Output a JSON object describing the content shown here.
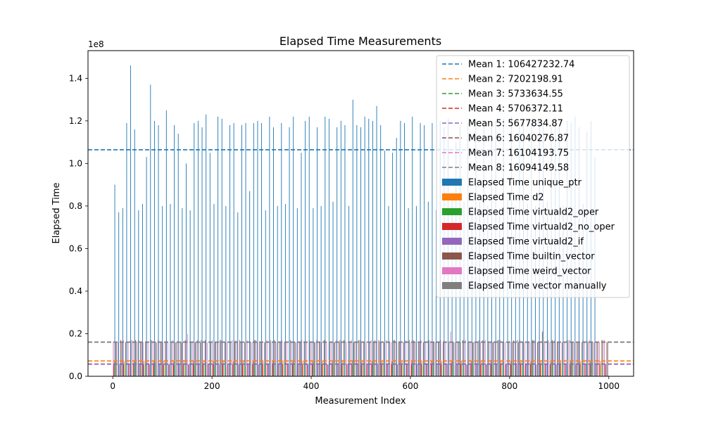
{
  "chart_data": {
    "type": "bar",
    "title": "Elapsed Time Measurements",
    "xlabel": "Measurement Index",
    "ylabel": "Elapsed Time",
    "y_scale_label": "1e8",
    "xlim": [
      -50,
      1050
    ],
    "ylim": [
      0,
      1.53
    ],
    "x_ticks": [
      0,
      200,
      400,
      600,
      800,
      1000
    ],
    "x_tick_labels": [
      "0",
      "200",
      "400",
      "600",
      "800",
      "1000"
    ],
    "y_ticks": [
      0,
      0.2,
      0.4,
      0.6,
      0.8,
      1.0,
      1.2,
      1.4
    ],
    "y_tick_labels": [
      "0.0",
      "0.2",
      "0.4",
      "0.6",
      "0.8",
      "1.0",
      "1.2",
      "1.4"
    ],
    "grid": false,
    "legend_position": "top-right",
    "mean_lines": [
      {
        "label": "Mean 1: 106427232.74",
        "value": 1.0642723274,
        "color": "#1f77b4"
      },
      {
        "label": "Mean 2: 7202198.91",
        "value": 0.0720219891,
        "color": "#ff7f0e"
      },
      {
        "label": "Mean 3: 5733634.55",
        "value": 0.0573363455,
        "color": "#2ca02c"
      },
      {
        "label": "Mean 4: 5706372.11",
        "value": 0.0570637211,
        "color": "#d62728"
      },
      {
        "label": "Mean 5: 5677834.87",
        "value": 0.0567783487,
        "color": "#9467bd"
      },
      {
        "label": "Mean 6: 16040276.87",
        "value": 0.1604027687,
        "color": "#8c564b"
      },
      {
        "label": "Mean 7: 16104193.75",
        "value": 0.1610419375,
        "color": "#e377c2"
      },
      {
        "label": "Mean 8: 16094149.58",
        "value": 0.1609414958,
        "color": "#7f7f7f"
      }
    ],
    "series": [
      {
        "name": "Elapsed Time unique_ptr",
        "color": "#1f77b4",
        "step": 8,
        "offset": 4,
        "values": [
          0.9,
          0.77,
          0.79,
          1.19,
          1.46,
          1.16,
          0.78,
          0.81,
          1.03,
          1.37,
          1.2,
          1.18,
          0.8,
          1.25,
          0.81,
          1.18,
          1.14,
          0.79,
          1.0,
          0.78,
          1.19,
          1.2,
          1.17,
          1.23,
          1.05,
          0.81,
          1.22,
          1.21,
          0.8,
          1.18,
          1.19,
          0.77,
          1.18,
          1.19,
          0.87,
          1.19,
          1.2,
          1.19,
          0.78,
          1.22,
          1.17,
          0.8,
          1.19,
          0.81,
          1.17,
          1.22,
          0.79,
          1.05,
          1.2,
          1.22,
          0.79,
          1.17,
          0.8,
          1.22,
          1.21,
          0.82,
          1.17,
          1.2,
          1.18,
          0.8,
          1.3,
          1.18,
          1.17,
          1.22,
          1.21,
          1.2,
          1.27,
          1.18,
          1.06,
          0.8,
          1.05,
          1.12,
          1.2,
          1.19,
          0.79,
          1.22,
          0.8,
          1.19,
          1.18,
          0.82,
          1.19,
          0.78,
          1.2,
          1.17,
          1.21,
          0.84,
          1.1,
          1.18,
          0.82,
          1.19,
          0.8,
          1.21,
          0.82,
          1.19,
          0.8,
          1.18,
          1.2,
          0.79,
          1.21,
          0.83,
          1.22,
          0.8,
          1.18,
          1.2,
          0.81,
          1.19,
          0.8,
          1.2,
          1.19,
          0.82,
          1.18,
          1.21,
          1.18,
          0.8,
          1.2,
          1.19,
          1.22,
          1.17,
          0.81,
          1.15,
          1.2,
          1.03
        ]
      },
      {
        "name": "Elapsed Time d2",
        "color": "#ff7f0e",
        "step": 20,
        "offset": 3,
        "values": [
          0.072,
          0.071,
          0.075,
          0.073,
          0.07,
          0.074,
          0.072,
          0.076,
          0.071,
          0.073,
          0.072,
          0.075,
          0.07,
          0.073,
          0.074,
          0.072,
          0.071,
          0.075,
          0.073,
          0.072,
          0.074,
          0.071,
          0.073,
          0.072,
          0.075,
          0.07,
          0.073,
          0.074,
          0.072,
          0.071,
          0.075,
          0.073,
          0.072,
          0.074,
          0.071,
          0.073,
          0.072,
          0.075,
          0.07,
          0.073,
          0.074,
          0.072,
          0.071,
          0.075,
          0.073,
          0.072,
          0.074,
          0.071,
          0.073,
          0.072
        ]
      },
      {
        "name": "Elapsed Time virtuald2_oper",
        "color": "#2ca02c",
        "step": 20,
        "offset": 6,
        "values": [
          0.057,
          0.058,
          0.056,
          0.06,
          0.057,
          0.055,
          0.059,
          0.057,
          0.058,
          0.056,
          0.057,
          0.059,
          0.056,
          0.058,
          0.057,
          0.06,
          0.055,
          0.057,
          0.058,
          0.056,
          0.059,
          0.057,
          0.058,
          0.056,
          0.057,
          0.059,
          0.056,
          0.058,
          0.057,
          0.06,
          0.055,
          0.057,
          0.058,
          0.056,
          0.059,
          0.057,
          0.058,
          0.056,
          0.057,
          0.059,
          0.056,
          0.058,
          0.057,
          0.06,
          0.055,
          0.057,
          0.058,
          0.056,
          0.059,
          0.057
        ]
      },
      {
        "name": "Elapsed Time virtuald2_no_oper",
        "color": "#d62728",
        "step": 10,
        "offset": 2,
        "values": [
          0.057,
          0.056,
          0.059,
          0.057,
          0.058,
          0.056,
          0.057,
          0.06,
          0.055,
          0.058,
          0.057,
          0.056,
          0.059,
          0.057,
          0.058,
          0.056,
          0.057,
          0.059,
          0.056,
          0.058,
          0.057,
          0.06,
          0.055,
          0.057,
          0.058,
          0.056,
          0.059,
          0.057,
          0.058,
          0.056,
          0.057,
          0.059,
          0.056,
          0.058,
          0.057,
          0.06,
          0.055,
          0.057,
          0.058,
          0.056,
          0.059,
          0.057,
          0.058,
          0.056,
          0.057,
          0.059,
          0.056,
          0.058,
          0.057,
          0.06,
          0.055,
          0.057,
          0.058,
          0.056,
          0.059,
          0.057,
          0.058,
          0.056,
          0.057,
          0.059,
          0.056,
          0.058,
          0.057,
          0.06,
          0.055,
          0.057,
          0.058,
          0.056,
          0.059,
          0.057,
          0.058,
          0.056,
          0.057,
          0.059,
          0.056,
          0.058,
          0.057,
          0.06,
          0.055,
          0.057,
          0.058,
          0.056,
          0.059,
          0.057,
          0.058,
          0.056,
          0.057,
          0.059,
          0.056,
          0.058,
          0.057,
          0.06,
          0.055,
          0.057,
          0.058,
          0.056,
          0.059,
          0.057,
          0.058,
          0.056
        ]
      },
      {
        "name": "Elapsed Time virtuald2_if",
        "color": "#9467bd",
        "step": 20,
        "offset": 14,
        "values": [
          0.056,
          0.057,
          0.058,
          0.056,
          0.055,
          0.059,
          0.057,
          0.056,
          0.058,
          0.057,
          0.055,
          0.056,
          0.058,
          0.057,
          0.056,
          0.059,
          0.057,
          0.055,
          0.056,
          0.058,
          0.057,
          0.056,
          0.059,
          0.057,
          0.055,
          0.056,
          0.058,
          0.057,
          0.056,
          0.059,
          0.057,
          0.055,
          0.056,
          0.058,
          0.057,
          0.056,
          0.059,
          0.057,
          0.055,
          0.056,
          0.058,
          0.057,
          0.056,
          0.059,
          0.057,
          0.055,
          0.056,
          0.058,
          0.057,
          0.056
        ]
      },
      {
        "name": "Elapsed Time builtin_vector",
        "color": "#8c564b",
        "step": 10,
        "offset": 6,
        "values": [
          0.16,
          0.17,
          0.16,
          0.16,
          0.17,
          0.16,
          0.16,
          0.17,
          0.16,
          0.16,
          0.16,
          0.17,
          0.16,
          0.16,
          0.17,
          0.16,
          0.16,
          0.16,
          0.17,
          0.16,
          0.16,
          0.17,
          0.16,
          0.16,
          0.16,
          0.17,
          0.16,
          0.16,
          0.17,
          0.16,
          0.16,
          0.16,
          0.17,
          0.16,
          0.16,
          0.17,
          0.16,
          0.16,
          0.16,
          0.17,
          0.16,
          0.16,
          0.17,
          0.16,
          0.16,
          0.16,
          0.17,
          0.16,
          0.16,
          0.17,
          0.16,
          0.16,
          0.16,
          0.17,
          0.16,
          0.16,
          0.17,
          0.16,
          0.16,
          0.16,
          0.17,
          0.16,
          0.16,
          0.17,
          0.16,
          0.16,
          0.16,
          0.17,
          0.16,
          0.16,
          0.17,
          0.16,
          0.16,
          0.16,
          0.17,
          0.16,
          0.16,
          0.17,
          0.16,
          0.16,
          0.16,
          0.17,
          0.16,
          0.16,
          0.17,
          0.16,
          0.21,
          0.16,
          0.17,
          0.16,
          0.16,
          0.17,
          0.16,
          0.16,
          0.16,
          0.17,
          0.16,
          0.16,
          0.17,
          0.16
        ]
      },
      {
        "name": "Elapsed Time weird_vector",
        "color": "#e377c2",
        "step": 10,
        "offset": 1,
        "values": [
          0.16,
          0.16,
          0.17,
          0.16,
          0.16,
          0.17,
          0.16,
          0.16,
          0.16,
          0.17,
          0.16,
          0.16,
          0.17,
          0.16,
          0.16,
          0.2,
          0.16,
          0.17,
          0.16,
          0.16,
          0.17,
          0.16,
          0.16,
          0.16,
          0.17,
          0.16,
          0.16,
          0.17,
          0.16,
          0.16,
          0.16,
          0.17,
          0.16,
          0.16,
          0.17,
          0.16,
          0.16,
          0.16,
          0.17,
          0.16,
          0.16,
          0.17,
          0.16,
          0.16,
          0.16,
          0.17,
          0.16,
          0.16,
          0.17,
          0.16,
          0.16,
          0.16,
          0.17,
          0.16,
          0.16,
          0.17,
          0.16,
          0.16,
          0.16,
          0.17,
          0.16,
          0.16,
          0.17,
          0.16,
          0.16,
          0.16,
          0.17,
          0.16,
          0.21,
          0.16,
          0.16,
          0.17,
          0.16,
          0.16,
          0.16,
          0.17,
          0.16,
          0.16,
          0.17,
          0.16,
          0.16,
          0.16,
          0.17,
          0.16,
          0.16,
          0.17,
          0.16,
          0.16,
          0.16,
          0.17,
          0.16,
          0.16,
          0.17,
          0.16,
          0.16,
          0.16,
          0.17,
          0.16,
          0.16,
          0.17
        ]
      },
      {
        "name": "Elapsed Time vector manually",
        "color": "#7f7f7f",
        "step": 10,
        "offset": 8,
        "values": [
          0.16,
          0.16,
          0.16,
          0.17,
          0.16,
          0.16,
          0.16,
          0.17,
          0.16,
          0.16,
          0.17,
          0.16,
          0.16,
          0.16,
          0.17,
          0.16,
          0.16,
          0.17,
          0.16,
          0.16,
          0.16,
          0.17,
          0.16,
          0.16,
          0.17,
          0.16,
          0.16,
          0.16,
          0.17,
          0.16,
          0.16,
          0.17,
          0.16,
          0.16,
          0.16,
          0.17,
          0.16,
          0.16,
          0.17,
          0.16,
          0.16,
          0.16,
          0.17,
          0.16,
          0.16,
          0.17,
          0.16,
          0.16,
          0.16,
          0.17,
          0.16,
          0.16,
          0.17,
          0.16,
          0.16,
          0.16,
          0.17,
          0.16,
          0.16,
          0.17,
          0.16,
          0.16,
          0.16,
          0.17,
          0.16,
          0.16,
          0.17,
          0.16,
          0.16,
          0.16,
          0.17,
          0.16,
          0.16,
          0.17,
          0.16,
          0.16,
          0.16,
          0.17,
          0.16,
          0.16,
          0.17,
          0.16,
          0.16,
          0.16,
          0.17,
          0.16,
          0.16,
          0.17,
          0.16,
          0.16,
          0.16,
          0.17,
          0.16,
          0.16,
          0.17,
          0.16,
          0.16,
          0.16,
          0.17,
          0.16
        ]
      }
    ]
  }
}
